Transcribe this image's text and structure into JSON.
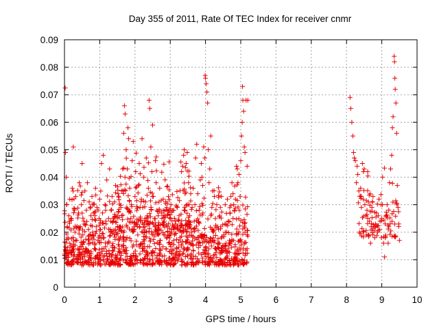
{
  "chart_data": {
    "type": "scatter",
    "title": "Day 355 of 2011, Rate Of TEC Index for receiver cnmr",
    "xlabel": "GPS time / hours",
    "ylabel": "ROTI / TECUs",
    "xlim": [
      0,
      10
    ],
    "ylim": [
      0,
      0.09
    ],
    "xticks": [
      "0",
      "1",
      "2",
      "3",
      "4",
      "5",
      "6",
      "7",
      "8",
      "9",
      "10"
    ],
    "yticks": [
      "0",
      "0.01",
      "0.02",
      "0.03",
      "0.04",
      "0.05",
      "0.06",
      "0.07",
      "0.08",
      "0.09"
    ],
    "grid": true,
    "marker": "plus",
    "color": "#e80000",
    "series": [
      {
        "points": [
          [
            0.02,
            0.0725
          ],
          [
            0.03,
            0.049
          ],
          [
            0.05,
            0.04
          ],
          [
            0.06,
            0.03
          ],
          [
            0.08,
            0.022
          ],
          [
            0.1,
            0.018
          ],
          [
            0.12,
            0.026
          ],
          [
            0.15,
            0.032
          ],
          [
            0.18,
            0.015
          ],
          [
            0.2,
            0.025
          ],
          [
            0.22,
            0.036
          ],
          [
            0.25,
            0.051
          ],
          [
            0.28,
            0.028
          ],
          [
            0.3,
            0.02
          ],
          [
            0.32,
            0.033
          ],
          [
            0.35,
            0.017
          ],
          [
            0.38,
            0.014
          ],
          [
            0.4,
            0.027
          ],
          [
            0.42,
            0.038
          ],
          [
            0.45,
            0.022
          ],
          [
            0.48,
            0.03
          ],
          [
            0.5,
            0.045
          ],
          [
            0.52,
            0.019
          ],
          [
            0.55,
            0.024
          ],
          [
            0.58,
            0.035
          ],
          [
            0.6,
            0.013
          ],
          [
            0.62,
            0.028
          ],
          [
            0.65,
            0.038
          ],
          [
            0.68,
            0.021
          ],
          [
            0.7,
            0.031
          ],
          [
            0.72,
            0.016
          ],
          [
            0.75,
            0.026
          ],
          [
            0.78,
            0.033
          ],
          [
            0.8,
            0.019
          ],
          [
            0.82,
            0.027
          ],
          [
            0.85,
            0.014
          ],
          [
            0.88,
            0.036
          ],
          [
            0.9,
            0.022
          ],
          [
            0.92,
            0.029
          ],
          [
            0.95,
            0.017
          ],
          [
            0.98,
            0.025
          ],
          [
            1.0,
            0.032
          ],
          [
            1.02,
            0.021
          ],
          [
            1.05,
            0.045
          ],
          [
            1.08,
            0.027
          ],
          [
            1.1,
            0.048
          ],
          [
            1.12,
            0.018
          ],
          [
            1.15,
            0.03
          ],
          [
            1.18,
            0.023
          ],
          [
            1.2,
            0.039
          ],
          [
            1.22,
            0.016
          ],
          [
            1.25,
            0.025
          ],
          [
            1.28,
            0.043
          ],
          [
            1.3,
            0.02
          ],
          [
            1.32,
            0.028
          ],
          [
            1.35,
            0.033
          ],
          [
            1.38,
            0.013
          ],
          [
            1.4,
            0.024
          ],
          [
            1.42,
            0.031
          ],
          [
            1.45,
            0.037
          ],
          [
            1.48,
            0.019
          ],
          [
            1.5,
            0.026
          ],
          [
            1.52,
            0.034
          ],
          [
            1.55,
            0.015
          ],
          [
            1.58,
            0.022
          ],
          [
            1.6,
            0.029
          ],
          [
            1.62,
            0.035
          ],
          [
            1.65,
            0.043
          ],
          [
            1.68,
            0.056
          ],
          [
            1.7,
            0.066
          ],
          [
            1.72,
            0.063
          ],
          [
            1.75,
            0.05
          ],
          [
            1.78,
            0.043
          ],
          [
            1.8,
            0.058
          ],
          [
            1.82,
            0.054
          ],
          [
            1.85,
            0.036
          ],
          [
            1.88,
            0.025
          ],
          [
            1.9,
            0.03
          ],
          [
            1.92,
            0.046
          ],
          [
            1.95,
            0.053
          ],
          [
            1.98,
            0.021
          ],
          [
            2.0,
            0.033
          ],
          [
            2.02,
            0.042
          ],
          [
            2.05,
            0.028
          ],
          [
            2.08,
            0.019
          ],
          [
            2.1,
            0.037
          ],
          [
            2.12,
            0.045
          ],
          [
            2.15,
            0.024
          ],
          [
            2.18,
            0.032
          ],
          [
            2.2,
            0.054
          ],
          [
            2.22,
            0.029
          ],
          [
            2.25,
            0.04
          ],
          [
            2.28,
            0.022
          ],
          [
            2.3,
            0.031
          ],
          [
            2.32,
            0.047
          ],
          [
            2.35,
            0.026
          ],
          [
            2.38,
            0.036
          ],
          [
            2.4,
            0.068
          ],
          [
            2.42,
            0.065
          ],
          [
            2.45,
            0.051
          ],
          [
            2.48,
            0.042
          ],
          [
            2.5,
            0.059
          ],
          [
            2.52,
            0.033
          ],
          [
            2.55,
            0.025
          ],
          [
            2.58,
            0.046
          ],
          [
            2.6,
            0.038
          ],
          [
            2.62,
            0.028
          ],
          [
            2.65,
            0.021
          ],
          [
            2.68,
            0.031
          ],
          [
            2.7,
            0.036
          ],
          [
            2.72,
            0.017
          ],
          [
            2.75,
            0.027
          ],
          [
            2.78,
            0.023
          ],
          [
            2.8,
            0.032
          ],
          [
            2.82,
            0.019
          ],
          [
            2.85,
            0.026
          ],
          [
            2.88,
            0.014
          ],
          [
            2.9,
            0.029
          ],
          [
            2.92,
            0.022
          ],
          [
            2.95,
            0.033
          ],
          [
            2.98,
            0.018
          ],
          [
            3.0,
            0.025
          ],
          [
            3.02,
            0.03
          ],
          [
            3.05,
            0.016
          ],
          [
            3.08,
            0.022
          ],
          [
            3.1,
            0.028
          ],
          [
            3.12,
            0.019
          ],
          [
            3.15,
            0.024
          ],
          [
            3.18,
            0.014
          ],
          [
            3.2,
            0.029
          ],
          [
            3.22,
            0.021
          ],
          [
            3.25,
            0.026
          ],
          [
            3.28,
            0.018
          ],
          [
            3.3,
            0.023
          ],
          [
            3.32,
            0.042
          ],
          [
            3.35,
            0.044
          ],
          [
            3.38,
            0.048
          ],
          [
            3.4,
            0.05
          ],
          [
            3.42,
            0.034
          ],
          [
            3.45,
            0.045
          ],
          [
            3.48,
            0.049
          ],
          [
            3.5,
            0.03
          ],
          [
            3.52,
            0.038
          ],
          [
            3.55,
            0.026
          ],
          [
            3.58,
            0.034
          ],
          [
            3.6,
            0.02
          ],
          [
            3.62,
            0.029
          ],
          [
            3.65,
            0.036
          ],
          [
            3.68,
            0.024
          ],
          [
            3.7,
            0.03
          ],
          [
            3.72,
            0.047
          ],
          [
            3.75,
            0.052
          ],
          [
            3.78,
            0.034
          ],
          [
            3.8,
            0.016
          ],
          [
            3.82,
            0.028
          ],
          [
            3.85,
            0.039
          ],
          [
            3.88,
            0.045
          ],
          [
            3.9,
            0.04
          ],
          [
            3.92,
            0.037
          ],
          [
            3.95,
            0.051
          ],
          [
            3.98,
            0.047
          ],
          [
            3.99,
            0.077
          ],
          [
            4.0,
            0.076
          ],
          [
            4.02,
            0.074
          ],
          [
            4.04,
            0.071
          ],
          [
            4.06,
            0.067
          ],
          [
            4.08,
            0.05
          ],
          [
            4.1,
            0.038
          ],
          [
            4.12,
            0.043
          ],
          [
            4.15,
            0.055
          ],
          [
            4.18,
            0.029
          ],
          [
            4.2,
            0.035
          ],
          [
            4.22,
            0.018
          ],
          [
            4.25,
            0.033
          ],
          [
            4.28,
            0.025
          ],
          [
            4.3,
            0.022
          ],
          [
            4.32,
            0.03
          ],
          [
            4.35,
            0.016
          ],
          [
            4.38,
            0.014
          ],
          [
            4.4,
            0.026
          ],
          [
            4.42,
            0.029
          ],
          [
            4.45,
            0.033
          ],
          [
            4.48,
            0.013
          ],
          [
            4.5,
            0.015
          ],
          [
            4.52,
            0.019
          ],
          [
            4.55,
            0.023
          ],
          [
            4.58,
            0.016
          ],
          [
            4.6,
            0.02
          ],
          [
            4.62,
            0.032
          ],
          [
            4.65,
            0.024
          ],
          [
            4.68,
            0.017
          ],
          [
            4.7,
            0.027
          ],
          [
            4.72,
            0.033
          ],
          [
            4.75,
            0.038
          ],
          [
            4.78,
            0.034
          ],
          [
            4.8,
            0.03
          ],
          [
            4.82,
            0.028
          ],
          [
            4.85,
            0.032
          ],
          [
            4.88,
            0.044
          ],
          [
            4.9,
            0.043
          ],
          [
            4.92,
            0.038
          ],
          [
            4.95,
            0.041
          ],
          [
            4.98,
            0.033
          ],
          [
            5.0,
            0.046
          ],
          [
            5.02,
            0.055
          ],
          [
            5.04,
            0.06
          ],
          [
            5.05,
            0.073
          ],
          [
            5.06,
            0.068
          ],
          [
            5.08,
            0.064
          ],
          [
            5.1,
            0.051
          ],
          [
            5.12,
            0.049
          ],
          [
            5.15,
            0.068
          ],
          [
            5.18,
            0.044
          ],
          [
            5.2,
            0.068
          ],
          [
            8.1,
            0.069
          ],
          [
            8.12,
            0.065
          ],
          [
            8.15,
            0.06
          ],
          [
            8.18,
            0.055
          ],
          [
            8.2,
            0.049
          ],
          [
            8.22,
            0.047
          ],
          [
            8.25,
            0.046
          ],
          [
            8.28,
            0.038
          ],
          [
            8.3,
            0.044
          ],
          [
            8.32,
            0.041
          ],
          [
            8.35,
            0.035
          ],
          [
            8.38,
            0.033
          ],
          [
            8.4,
            0.036
          ],
          [
            8.42,
            0.029
          ],
          [
            8.45,
            0.045
          ],
          [
            8.48,
            0.042
          ],
          [
            8.5,
            0.043
          ],
          [
            8.52,
            0.03
          ],
          [
            8.55,
            0.026
          ],
          [
            8.58,
            0.028
          ],
          [
            8.6,
            0.042
          ],
          [
            8.62,
            0.031
          ],
          [
            8.65,
            0.024
          ],
          [
            8.68,
            0.016
          ],
          [
            8.7,
            0.022
          ],
          [
            8.72,
            0.029
          ],
          [
            8.75,
            0.033
          ],
          [
            8.78,
            0.022
          ],
          [
            8.8,
            0.018
          ],
          [
            8.82,
            0.023
          ],
          [
            8.85,
            0.027
          ],
          [
            8.88,
            0.02
          ],
          [
            8.9,
            0.026
          ],
          [
            8.92,
            0.032
          ],
          [
            8.95,
            0.024
          ],
          [
            8.98,
            0.03
          ],
          [
            9.0,
            0.025
          ],
          [
            9.02,
            0.03
          ],
          [
            9.05,
            0.016
          ],
          [
            9.08,
            0.011
          ],
          [
            9.1,
            0.018
          ],
          [
            9.12,
            0.026
          ],
          [
            9.15,
            0.03
          ],
          [
            9.18,
            0.016
          ],
          [
            9.2,
            0.022
          ],
          [
            9.22,
            0.038
          ],
          [
            9.25,
            0.043
          ],
          [
            9.28,
            0.048
          ],
          [
            9.3,
            0.058
          ],
          [
            9.32,
            0.062
          ],
          [
            9.35,
            0.084
          ],
          [
            9.36,
            0.082
          ],
          [
            9.37,
            0.076
          ],
          [
            9.38,
            0.072
          ],
          [
            9.4,
            0.067
          ],
          [
            9.42,
            0.056
          ],
          [
            9.44,
            0.037
          ],
          [
            9.46,
            0.029
          ],
          [
            9.48,
            0.023
          ],
          [
            9.5,
            0.017
          ]
        ]
      }
    ]
  }
}
